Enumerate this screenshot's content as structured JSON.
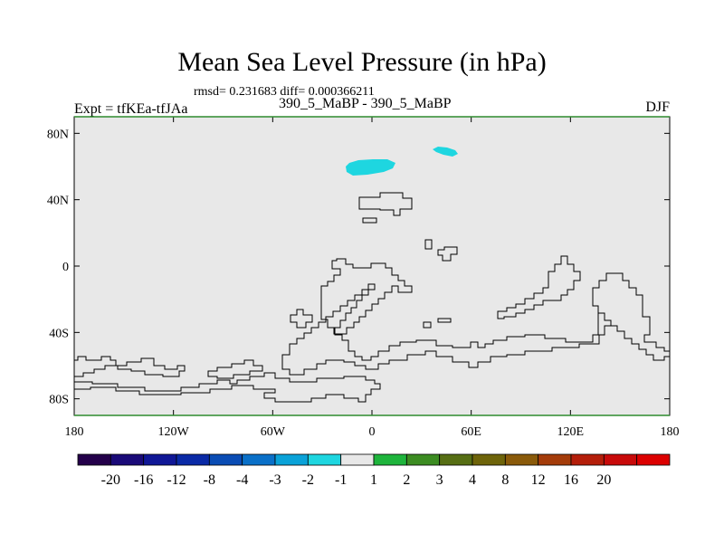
{
  "title": "Mean Sea Level Pressure (in hPa)",
  "stats": "rmsd= 0.231683 diff= 0.000366211",
  "left_label": "Expt = tfKEa-tfJAa",
  "center_label": "390_5_MaBP - 390_5_MaBP",
  "right_label": "DJF",
  "map": {
    "lon_range": [
      -180,
      180
    ],
    "lat_range": [
      -90,
      90
    ],
    "lat_ticks": [
      {
        "value": 80,
        "label": "80N"
      },
      {
        "value": 40,
        "label": "40N"
      },
      {
        "value": 0,
        "label": "0"
      },
      {
        "value": -40,
        "label": "40S"
      },
      {
        "value": -80,
        "label": "80S"
      }
    ],
    "lon_ticks": [
      {
        "value": -180,
        "label": "180"
      },
      {
        "value": -120,
        "label": "120W"
      },
      {
        "value": -60,
        "label": "60W"
      },
      {
        "value": 0,
        "label": "0"
      },
      {
        "value": 60,
        "label": "60E"
      },
      {
        "value": 120,
        "label": "120E"
      },
      {
        "value": 180,
        "label": "180"
      }
    ],
    "background_color": "#e8e8e8",
    "frame_color": "#2e8b2e",
    "anomaly_color": "#1ed6e0",
    "anomaly_range": "-2 to -1"
  },
  "colorbar": {
    "colors": [
      "#24004a",
      "#1a0a78",
      "#101796",
      "#0a2aa6",
      "#0a4cb4",
      "#0a70c8",
      "#0aa2d8",
      "#1ed6e0",
      "#e8e8e8",
      "#1eb43c",
      "#3c8c22",
      "#566e14",
      "#6e640a",
      "#8a5a0a",
      "#a43c0a",
      "#b41e0a",
      "#c80a0a",
      "#dc0000"
    ],
    "labels": [
      "-20",
      "-16",
      "-12",
      "-8",
      "-4",
      "-3",
      "-2",
      "-1",
      "1",
      "2",
      "3",
      "4",
      "8",
      "12",
      "16",
      "20"
    ]
  }
}
